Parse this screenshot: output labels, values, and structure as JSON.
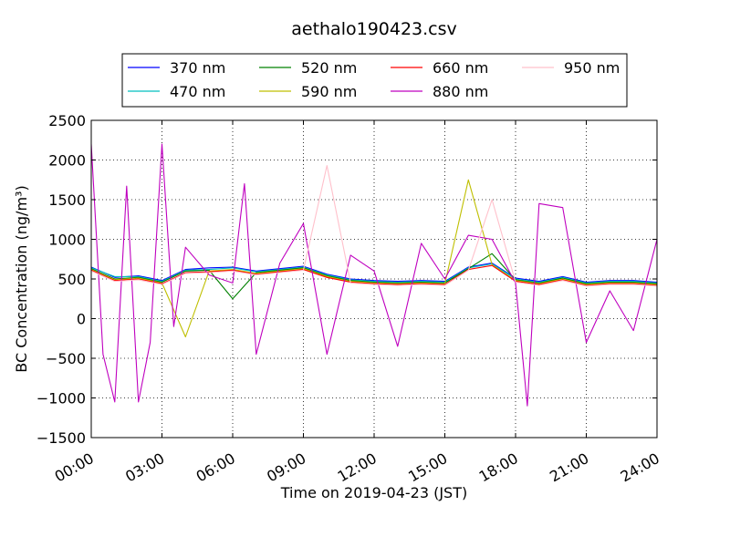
{
  "chart_data": {
    "type": "line",
    "title": "aethalo190423.csv",
    "xlabel": "Time on 2019-04-23 (JST)",
    "ylabel": "BC Concentration (ng/m³)",
    "x_ticks": [
      "00:00",
      "03:00",
      "06:00",
      "09:00",
      "12:00",
      "15:00",
      "18:00",
      "21:00",
      "24:00"
    ],
    "y_ticks": [
      "−1500",
      "−1000",
      "−500",
      "0",
      "500",
      "1000",
      "1500",
      "2000",
      "2500"
    ],
    "xlim": [
      "00:00",
      "24:00"
    ],
    "ylim": [
      -1500,
      2500
    ],
    "grid": true,
    "legend_position": "top-center, outside plot",
    "series": [
      {
        "name": "370 nm",
        "color": "#0000ff",
        "x": [
          "00:00",
          "01:00",
          "02:00",
          "03:00",
          "04:00",
          "05:00",
          "06:00",
          "07:00",
          "08:00",
          "09:00",
          "10:00",
          "11:00",
          "12:00",
          "13:00",
          "14:00",
          "15:00",
          "16:00",
          "17:00",
          "18:00",
          "19:00",
          "20:00",
          "21:00",
          "22:00",
          "23:00",
          "24:00"
        ],
        "values": [
          650,
          520,
          540,
          480,
          620,
          640,
          650,
          600,
          630,
          660,
          560,
          500,
          480,
          470,
          480,
          470,
          650,
          700,
          510,
          470,
          530,
          460,
          480,
          480,
          460
        ]
      },
      {
        "name": "470 nm",
        "color": "#00bfbf",
        "x": [
          "00:00",
          "01:00",
          "02:00",
          "03:00",
          "04:00",
          "05:00",
          "06:00",
          "07:00",
          "08:00",
          "09:00",
          "10:00",
          "11:00",
          "12:00",
          "13:00",
          "14:00",
          "15:00",
          "16:00",
          "17:00",
          "18:00",
          "19:00",
          "20:00",
          "21:00",
          "22:00",
          "23:00",
          "24:00"
        ],
        "values": [
          640,
          530,
          530,
          470,
          610,
          620,
          640,
          590,
          620,
          650,
          550,
          490,
          470,
          460,
          470,
          460,
          640,
          690,
          500,
          460,
          520,
          450,
          470,
          470,
          450
        ]
      },
      {
        "name": "520 nm",
        "color": "#008000",
        "x": [
          "00:00",
          "01:00",
          "02:00",
          "03:00",
          "04:00",
          "05:00",
          "06:00",
          "07:00",
          "08:00",
          "09:00",
          "10:00",
          "11:00",
          "12:00",
          "13:00",
          "14:00",
          "15:00",
          "16:00",
          "17:00",
          "18:00",
          "19:00",
          "20:00",
          "21:00",
          "22:00",
          "23:00",
          "24:00"
        ],
        "values": [
          630,
          500,
          520,
          460,
          600,
          610,
          250,
          580,
          610,
          640,
          540,
          480,
          460,
          450,
          460,
          450,
          630,
          820,
          490,
          450,
          510,
          440,
          460,
          460,
          440
        ]
      },
      {
        "name": "590 nm",
        "color": "#bfbf00",
        "x": [
          "00:00",
          "01:00",
          "02:00",
          "03:00",
          "04:00",
          "05:00",
          "06:00",
          "07:00",
          "08:00",
          "09:00",
          "10:00",
          "11:00",
          "12:00",
          "13:00",
          "14:00",
          "15:00",
          "16:00",
          "17:00",
          "18:00",
          "19:00",
          "20:00",
          "21:00",
          "22:00",
          "23:00",
          "24:00"
        ],
        "values": [
          620,
          490,
          510,
          450,
          -230,
          600,
          620,
          570,
          600,
          630,
          530,
          470,
          450,
          440,
          450,
          440,
          1750,
          680,
          480,
          440,
          500,
          430,
          450,
          450,
          430
        ]
      },
      {
        "name": "660 nm",
        "color": "#ff0000",
        "x": [
          "00:00",
          "01:00",
          "02:00",
          "03:00",
          "04:00",
          "05:00",
          "06:00",
          "07:00",
          "08:00",
          "09:00",
          "10:00",
          "11:00",
          "12:00",
          "13:00",
          "14:00",
          "15:00",
          "16:00",
          "17:00",
          "18:00",
          "19:00",
          "20:00",
          "21:00",
          "22:00",
          "23:00",
          "24:00"
        ],
        "values": [
          610,
          480,
          500,
          440,
          580,
          590,
          610,
          560,
          590,
          620,
          520,
          460,
          440,
          430,
          440,
          430,
          620,
          670,
          470,
          430,
          490,
          420,
          440,
          440,
          420
        ]
      },
      {
        "name": "880 nm",
        "color": "#bf00bf",
        "x": [
          "00:00",
          "00:30",
          "01:00",
          "01:30",
          "02:00",
          "02:30",
          "03:00",
          "03:30",
          "04:00",
          "05:00",
          "06:00",
          "06:30",
          "07:00",
          "08:00",
          "09:00",
          "10:00",
          "11:00",
          "12:00",
          "13:00",
          "14:00",
          "15:00",
          "16:00",
          "17:00",
          "18:00",
          "18:30",
          "19:00",
          "20:00",
          "21:00",
          "22:00",
          "23:00",
          "24:00"
        ],
        "values": [
          2200,
          -450,
          -1050,
          1670,
          -1050,
          -300,
          2200,
          -100,
          900,
          550,
          450,
          1700,
          -450,
          700,
          1200,
          -450,
          800,
          600,
          -350,
          950,
          500,
          1050,
          1000,
          450,
          -1100,
          1450,
          1400,
          -300,
          350,
          -150,
          1000
        ]
      },
      {
        "name": "950 nm",
        "color": "#ffc0cb",
        "x": [
          "00:00",
          "01:00",
          "02:00",
          "03:00",
          "04:00",
          "05:00",
          "06:00",
          "07:00",
          "08:00",
          "09:00",
          "10:00",
          "11:00",
          "12:00",
          "13:00",
          "14:00",
          "15:00",
          "16:00",
          "17:00",
          "18:00",
          "19:00",
          "20:00",
          "21:00",
          "22:00",
          "23:00",
          "24:00"
        ],
        "values": [
          600,
          470,
          490,
          430,
          570,
          580,
          600,
          550,
          580,
          610,
          1930,
          450,
          430,
          420,
          430,
          420,
          610,
          1500,
          460,
          420,
          480,
          410,
          430,
          430,
          410
        ]
      }
    ]
  }
}
